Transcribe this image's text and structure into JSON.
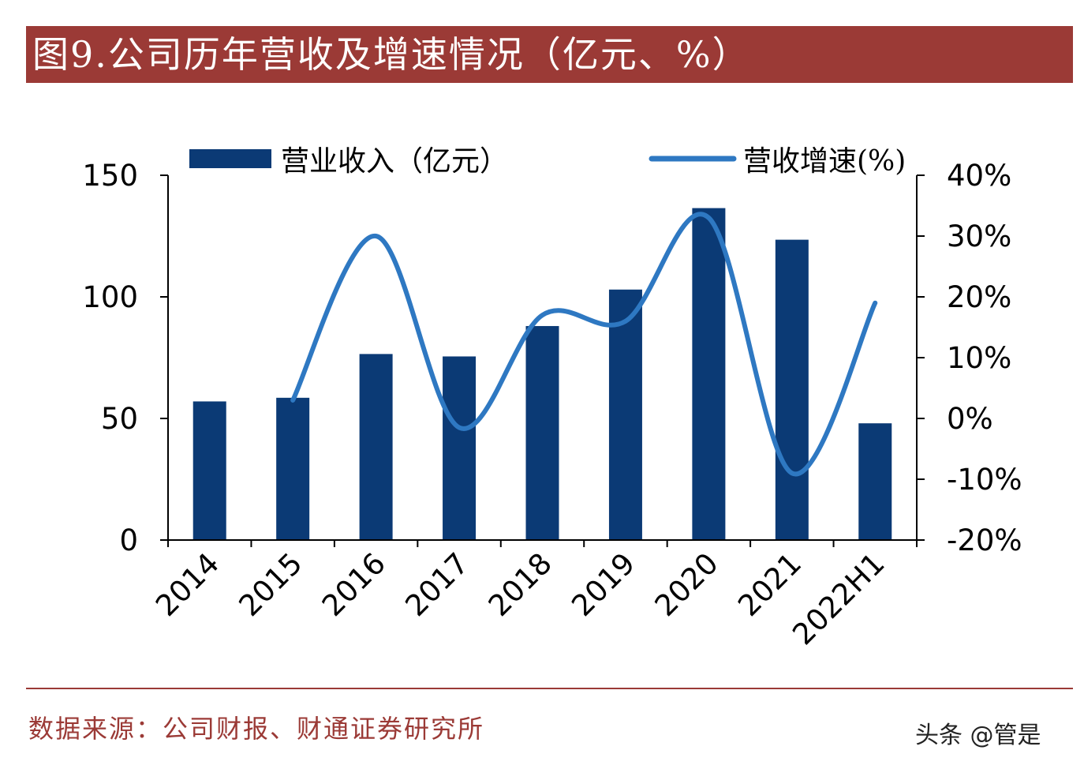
{
  "title": "图9.公司历年营收及增速情况（亿元、%）",
  "source": "数据来源：公司财报、财通证券研究所",
  "watermark": "头条 @管是",
  "colors": {
    "bar": "#0b3a75",
    "line": "#2e78c2",
    "title_bg": "#9b3a36",
    "axis": "#000000"
  },
  "chart_data": {
    "type": "bar",
    "categories": [
      "2014",
      "2015",
      "2016",
      "2017",
      "2018",
      "2019",
      "2020",
      "2021",
      "2022H1"
    ],
    "series": [
      {
        "name": "营业收入（亿元）",
        "type": "bar",
        "axis": "left",
        "values": [
          57,
          58.5,
          76.5,
          75.5,
          88,
          103,
          136.5,
          123.5,
          48
        ]
      },
      {
        "name": "营收增速(%)",
        "type": "line",
        "axis": "right",
        "values": [
          null,
          3,
          30,
          -1.5,
          17,
          16,
          33,
          -9,
          19
        ]
      }
    ],
    "y_left": {
      "ylim": [
        0,
        150
      ],
      "ticks": [
        0,
        50,
        100,
        150
      ]
    },
    "y_right": {
      "ylim": [
        -20,
        40
      ],
      "ticks": [
        "-20%",
        "-10%",
        "0%",
        "10%",
        "20%",
        "30%",
        "40%"
      ],
      "tick_values": [
        -20,
        -10,
        0,
        10,
        20,
        30,
        40
      ]
    },
    "legend": "top",
    "grid": false
  }
}
